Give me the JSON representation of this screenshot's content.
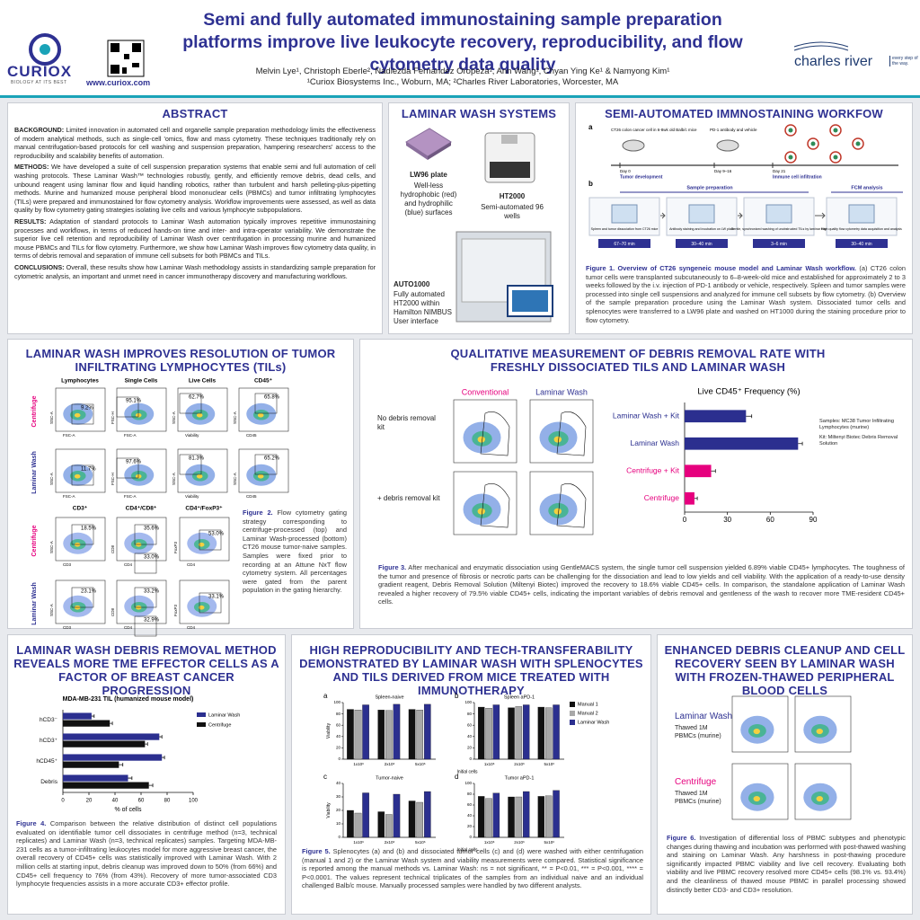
{
  "header": {
    "title": "Semi and fully automated immunostaining sample preparation platforms improve live leukocyte recovery, reproducibility, and flow cytometry data quality",
    "authors": "Melvin Lye¹, Christoph Eberle², Nadiezda Fernandez Oropeza¹, Ann Wang¹, Chyan Ying Ke¹ & Namyong Kim¹",
    "affiliations": "¹Curiox Biosystems Inc., Woburn, MA; ²Charles River Laboratories, Worcester, MA",
    "curiox_logo": "CURIOX",
    "curiox_tagline": "BIOLOGY AT ITS BEST",
    "curiox_url": "www.curiox.com",
    "cr_logo": "charles river",
    "cr_tagline": "every step of the way."
  },
  "abstract": {
    "title": "ABSTRACT",
    "paragraphs": [
      {
        "label": "BACKGROUND:",
        "text": "Limited innovation in automated cell and organelle sample preparation methodology limits the effectiveness of modern analytical methods, such as single-cell 'omics, flow and mass cytometry. These techniques traditionally rely on manual centrifugation-based protocols for cell washing and suspension preparation, hampering researchers' access to the reproducibility and scalability benefits of automation."
      },
      {
        "label": "METHODS:",
        "text": "We have developed a suite of cell suspension preparation systems that enable semi and full automation of cell washing protocols. These Laminar Wash™ technologies robustly, gently, and efficiently remove debris, dead cells, and unbound reagent using laminar flow and liquid handling robotics, rather than turbulent and harsh pelleting-plus-pipetting methods. Murine and humanized mouse peripheral blood mononuclear cells (PBMCs) and tumor infiltrating lymphocytes (TILs) were prepared and immunostained for flow cytometry analysis. Workflow improvements were assessed, as well as data quality by flow cytometry gating strategies isolating live cells and various lymphocyte subpopulations."
      },
      {
        "label": "RESULTS:",
        "text": "Adaptation of standard protocols to Laminar Wash automation typically improves repetitive immunostaining processes and workflows, in terms of reduced hands-on time and inter- and intra-operator variability. We demonstrate the superior live cell retention and reproducibility of Laminar Wash over centrifugation in processing murine and humanized mouse PBMCs and TILs for flow cytometry. Furthermore, we show how Laminar Wash improves flow cytometry data quality, in terms of debris removal and separation of immune cell subsets for both PBMCs and TILs."
      },
      {
        "label": "CONCLUSIONS:",
        "text": "Overall, these results show how Laminar Wash methodology assists in standardizing sample preparation for cytometric analysis, an important and unmet need in cancer immunotherapy discovery and manufacturing workflows."
      }
    ]
  },
  "systems": {
    "title": "LAMINAR WASH SYSTEMS",
    "items": [
      {
        "name": "LW96 plate",
        "desc": "Well-less hydrophobic (red) and hydrophilic (blue) surfaces"
      },
      {
        "name": "HT2000",
        "desc": "Semi-automated 96 wells"
      },
      {
        "name": "AUTO1000",
        "desc": "Fully automated HT2000 within Hamilton NIMBUS User interface"
      }
    ]
  },
  "workflow": {
    "title": "SEMI-AUTOMATED IMMNOSTAINING WORKFOW",
    "panel_a": {
      "letter": "a",
      "cells": "CT26 colon cancer cell in 6-8wk old Balb/c mice",
      "antibody": "PD-1 antibody and vehicle",
      "timeline": [
        {
          "day": "Day 0",
          "label": "Tumor development"
        },
        {
          "day": "Day 9–16",
          "label": null
        },
        {
          "day": "Day 21",
          "label": "Immune cell infiltration"
        }
      ]
    },
    "panel_b": {
      "letter": "b",
      "groups": [
        "Sample preparation",
        "FCM analysis"
      ],
      "steps": [
        {
          "desc": "Spleen and tumor dissociation from CT26 mice",
          "time": "67–70 min"
        },
        {
          "desc": "Antibody staining and incubation on LW plate",
          "time": "30–40 min"
        },
        {
          "desc": "Gentle, synchronized washing of unobstructed TILs by laminar flow",
          "time": "3–6 min"
        },
        {
          "desc": "High quality flow cytometry data acquisition and analysis",
          "time": "30–40 min"
        }
      ]
    },
    "caption": {
      "label": "Figure 1. Overview of CT26 syngeneic mouse model and Laminar Wash workflow.",
      "text": "(a) CT26 colon tumor cells were transplanted subcutaneously to 6–8-week-old mice and established for approximately 2 to 3 weeks followed by the i.v. injection of PD-1 antibody or vehicle, respectively. Spleen and tumor samples were processed into single cell suspensions and analyzed for immune cell subsets by flow cytometry. (b) Overview of the sample preparation procedure using the Laminar Wash system. Dissociated tumor cells and splenocytes were transferred to a LW96 plate and washed on HT1000 during the staining procedure prior to flow cytometry."
    }
  },
  "fig2": {
    "title": "LAMINAR WASH IMPROVES RESOLUTION OF TUMOR INFILTRATING LYMPHOCYTES (TILs)",
    "columns": [
      "Lymphocytes",
      "Single Cells",
      "Live Cells",
      "CD45⁺"
    ],
    "columns2": [
      "CD3⁺",
      "CD4⁺/CD8⁺",
      "CD4⁺/FoxP3⁺"
    ],
    "rows": [
      "Centrifuge",
      "Laminar Wash"
    ],
    "x_axes": [
      "FSC-A",
      "FSC-A",
      "Viability",
      "CD45",
      "CD3",
      "CD4",
      "CD4"
    ],
    "y_axes": [
      "SSC-A",
      "FSC-H",
      "SSC-A",
      "SSC-A",
      "SSC-A",
      "CD8",
      "FoxP3"
    ],
    "gates": [
      [
        "9.2%",
        "95.1%",
        "62.7%",
        "65.8%"
      ],
      [
        "11.7%",
        "97.6%",
        "81.3%",
        "65.2%"
      ],
      [
        "18.5%",
        "35.6%",
        "33.0%",
        "53.0%"
      ],
      [
        "23.1%",
        "33.2%",
        "32.9%",
        "33.1%"
      ]
    ],
    "caption": {
      "label": "Figure 2.",
      "text": "Flow cytometry gating strategy corresponding to centrifuge-processed (top) and Laminar Wash-processed (bottom) CT26 mouse tumor-naive samples. Samples were fixed prior to recording at an Attune NxT flow cytometry system. All percentages were gated from the parent population in the gating hierarchy."
    }
  },
  "fig3": {
    "title": "QUALITATIVE MEASUREMENT OF DEBRIS REMOVAL RATE WITH FRESHLY DISSOCIATED TILS AND LAMINAR WASH",
    "columns": [
      "Conventional",
      "Laminar Wash"
    ],
    "rows": [
      "No debris removal kit",
      "+ debris removal kit"
    ],
    "notes": [
      {
        "label": "Samples:",
        "text": "MC38 Tumor Infiltrating Lymphocytes (murine)"
      },
      {
        "label": "Kit:",
        "text": "Miltenyi Biotec Debris Removal Solution"
      }
    ],
    "caption": {
      "label": "Figure 3.",
      "text": "After mechanical and enzymatic dissociation using GentleMACS system, the single tumor cell suspension yielded 6.89% viable CD45+ lymphocytes. The toughness of the tumor and presence of fibrosis or necrotic parts can be challenging for the dissociation and lead to low yields and cell viability. With the application of a ready-to-use density gradient reagent, Debris Removal Solution (Miltenyi Biotec) improved the recovery to 18.6% viable CD45+ cells. In comparison, the standalone application of Laminar Wash revealed a higher recovery of 79.5% viable CD45+ cells, indicating the important variables of debris removal and gentleness of the wash to recover more TME-resident CD45+ cells."
    }
  },
  "fig4": {
    "title": "LAMINAR WASH DEBRIS REMOVAL METHOD REVEALS MORE TME EFFECTOR CELLS AS A FACTOR OF BREAST CANCER PROGRESSION",
    "caption": {
      "label": "Figure 4.",
      "text": "Comparison between the relative distribution of distinct cell populations evaluated on identifiable tumor cell dissociates in centrifuge method (n=3, technical replicates) and Laminar Wash (n=3, technical replicates) samples. Targeting MDA-MB-231 cells as a tumor-infiltrating leukocytes model for more aggressive breast cancer, the overall recovery of CD45+ cells was statistically improved with Laminar Wash. With 2 million cells at starting input, debris cleanup was improved down to 50% (from 66%) and CD45+ cell frequency to 76% (from 43%). Recovery of more tumor-associated CD3 lymphocyte frequencies assists in a more accurate CD3+ effector profile."
    }
  },
  "fig5": {
    "title": "HIGH REPRODUCIBILITY AND TECH-TRANSFERABILITY DEMONSTRATED BY LAMINAR WASH WITH SPLENOCYTES AND TILS DERIVED FROM MICE TREATED WITH IMMUNOTHERAPY",
    "caption": {
      "label": "Figure 5.",
      "text": "Splenocytes (a) and (b) and dissociated tumor cells (c) and (d) were washed with either centrifugation (manual 1 and 2) or the Laminar Wash system and viability measurements were compared. Statistical significance is reported among the manual methods vs. Laminar Wash: ns = not significant, ** = P<0.01, *** = P<0.001, **** = P<0.0001. The values represent technical triplicates of the samples from an individual naive and an individual challenged Balb/c mouse. Manually processed samples were handled by two different analysts."
    }
  },
  "fig6": {
    "title": "ENHANCED DEBRIS CLEANUP AND CELL RECOVERY SEEN BY LAMINAR WASH WITH FROZEN-THAWED PERIPHERAL BLOOD CELLS",
    "rows": [
      {
        "method": "Laminar Wash",
        "sample": "Thawed 1M PBMCs (murine)"
      },
      {
        "method": "Centrifuge",
        "sample": "Thawed 1M PBMCs (murine)"
      }
    ],
    "caption": {
      "label": "Figure 6.",
      "text": "Investigation of differential loss of PBMC subtypes and phenotypic changes during thawing and incubation was performed with post-thawed washing and staining on Laminar Wash. Any harshness in post-thawing procedure significantly impacted PBMC viability and live cell recovery. Evaluating both viability and live PBMC recovery resolved more CD45+ cells (98.1% vs. 93.4%) and the cleanliness of thawed mouse PBMC in parallel processing showed distinctly better CD3- and CD3+ resolution."
    }
  },
  "chart_data": [
    {
      "type": "bar",
      "orientation": "horizontal",
      "title": "Live CD45⁺ Frequency (%)",
      "categories": [
        "Laminar Wash + Kit",
        "Laminar Wash",
        "Centrifuge + Kit",
        "Centrifuge"
      ],
      "values": [
        43,
        79.5,
        18.6,
        6.89
      ],
      "errors": [
        4,
        3,
        3,
        2
      ],
      "colors": [
        "#2b2f8f",
        "#2b2f8f",
        "#e6007e",
        "#e6007e"
      ],
      "xlim": [
        0,
        90
      ],
      "xticks": [
        0,
        30,
        60,
        90
      ]
    },
    {
      "type": "bar",
      "orientation": "horizontal",
      "title": "MDA-MB-231 TIL (humanized mouse model)",
      "x_label": "% of cells",
      "categories": [
        "hCD3⁻",
        "hCD3⁺",
        "hCD45⁺",
        "Debris"
      ],
      "series": [
        {
          "name": "Laminar Wash",
          "color": "#2b2f8f",
          "values": [
            22,
            74,
            76,
            50
          ],
          "errors": [
            2,
            2,
            2,
            3
          ]
        },
        {
          "name": "Centrifuge",
          "color": "#111111",
          "values": [
            36,
            63,
            43,
            66
          ],
          "errors": [
            2,
            2,
            3,
            3
          ]
        }
      ],
      "xlim": [
        0,
        100
      ],
      "xticks": [
        0,
        20,
        40,
        60,
        80,
        100
      ],
      "legend": "upper right"
    },
    {
      "type": "bar",
      "orientation": "vertical",
      "panel": "a",
      "title": "Spleen-naive",
      "y_label": "Viability",
      "categories": [
        "1x10⁶",
        "2x10⁶",
        "5x10⁶"
      ],
      "series": [
        {
          "color": "#111111",
          "values": [
            88,
            87,
            88
          ]
        },
        {
          "color": "#a8a8a8",
          "values": [
            87,
            86,
            87
          ]
        },
        {
          "color": "#2b2f8f",
          "values": [
            96,
            97,
            97
          ]
        }
      ],
      "ylim": [
        0,
        100
      ],
      "yticks": [
        0,
        20,
        40,
        60,
        80,
        100
      ]
    },
    {
      "type": "bar",
      "orientation": "vertical",
      "panel": "b",
      "title": "Spleen aPD-1",
      "x_label": "Initial cells",
      "categories": [
        "1x10⁶",
        "2x10⁶",
        "5x10⁶"
      ],
      "series": [
        {
          "name": "Manual 1",
          "color": "#111111",
          "values": [
            92,
            91,
            92
          ]
        },
        {
          "name": "Manual 2",
          "color": "#a8a8a8",
          "values": [
            90,
            93,
            91
          ]
        },
        {
          "name": "Laminar Wash",
          "color": "#2b2f8f",
          "values": [
            96,
            96,
            96
          ]
        }
      ],
      "ylim": [
        0,
        100
      ],
      "yticks": [
        0,
        20,
        40,
        60,
        80,
        100
      ],
      "legend": "right"
    },
    {
      "type": "bar",
      "orientation": "vertical",
      "panel": "c",
      "title": "Tumor-naive",
      "y_label": "Viability",
      "categories": [
        "1x10⁶",
        "2x10⁶",
        "5x10⁶"
      ],
      "series": [
        {
          "color": "#111111",
          "values": [
            20,
            19,
            27
          ]
        },
        {
          "color": "#a8a8a8",
          "values": [
            18,
            17,
            26
          ]
        },
        {
          "color": "#2b2f8f",
          "values": [
            33,
            32,
            34
          ]
        }
      ],
      "ylim": [
        0,
        40
      ],
      "yticks": [
        0,
        10,
        20,
        30,
        40
      ]
    },
    {
      "type": "bar",
      "orientation": "vertical",
      "panel": "d",
      "title": "Tumor aPD-1",
      "x_label": "Initial cells",
      "categories": [
        "1x10⁶",
        "2x10⁶",
        "5x10⁶"
      ],
      "series": [
        {
          "color": "#111111",
          "values": [
            76,
            75,
            76
          ]
        },
        {
          "color": "#a8a8a8",
          "values": [
            72,
            75,
            77
          ]
        },
        {
          "color": "#2b2f8f",
          "values": [
            82,
            85,
            87
          ]
        }
      ],
      "ylim": [
        0,
        100
      ],
      "yticks": [
        0,
        20,
        40,
        60,
        80,
        100
      ]
    }
  ]
}
